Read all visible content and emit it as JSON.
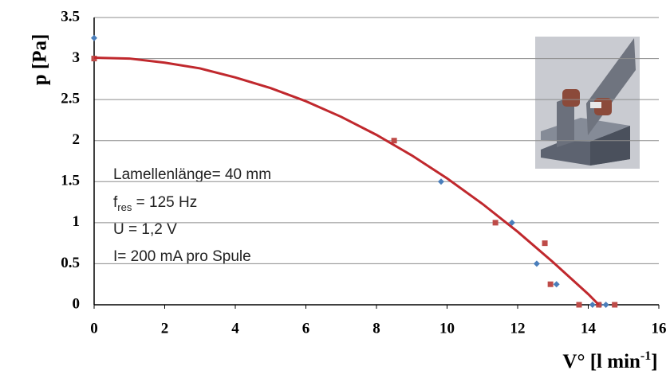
{
  "chart_data": {
    "type": "scatter",
    "xlim": [
      0,
      16
    ],
    "xticks": [
      0,
      2,
      4,
      6,
      8,
      10,
      12,
      14,
      16
    ],
    "ylim": [
      0,
      3.5
    ],
    "yticks": [
      0,
      0.5,
      1,
      1.5,
      2,
      2.5,
      3,
      3.5
    ],
    "grid": true,
    "ylabel": "p  [Pa]",
    "xlabel": {
      "main": "V°  [l min",
      "sup": "-1",
      "end": "]"
    },
    "annotations": [
      "Lamellenlänge= 40 mm",
      "U = 1,2 V",
      "I= 200 mA pro Spule"
    ],
    "annotation_f": {
      "main": "f",
      "sub": "res",
      "rest": " = 125 Hz"
    },
    "series": [
      {
        "color": "#4a7ebb",
        "marker": "diamond",
        "x": [
          0,
          9.83,
          11.84,
          12.54,
          13.1,
          14.12,
          14.33,
          14.5
        ],
        "values": [
          3.25,
          1.5,
          1.0,
          0.5,
          0.25,
          0,
          0,
          0
        ]
      },
      {
        "color": "#be4b48",
        "marker": "square",
        "x": [
          0,
          8.5,
          11.37,
          12.77,
          12.93,
          13.74,
          14.3,
          14.75
        ],
        "values": [
          3.0,
          2.0,
          1.0,
          0.75,
          0.25,
          0,
          0,
          0
        ]
      },
      {
        "color": "#c0282d",
        "marker": "line",
        "x": [
          0,
          1,
          2,
          3,
          4,
          5,
          6,
          7,
          8,
          9,
          10,
          11,
          12,
          13,
          14,
          14.3
        ],
        "values": [
          3.01,
          3.0,
          2.95,
          2.88,
          2.77,
          2.64,
          2.48,
          2.29,
          2.07,
          1.82,
          1.54,
          1.23,
          0.89,
          0.52,
          0.13,
          0
        ]
      }
    ]
  }
}
